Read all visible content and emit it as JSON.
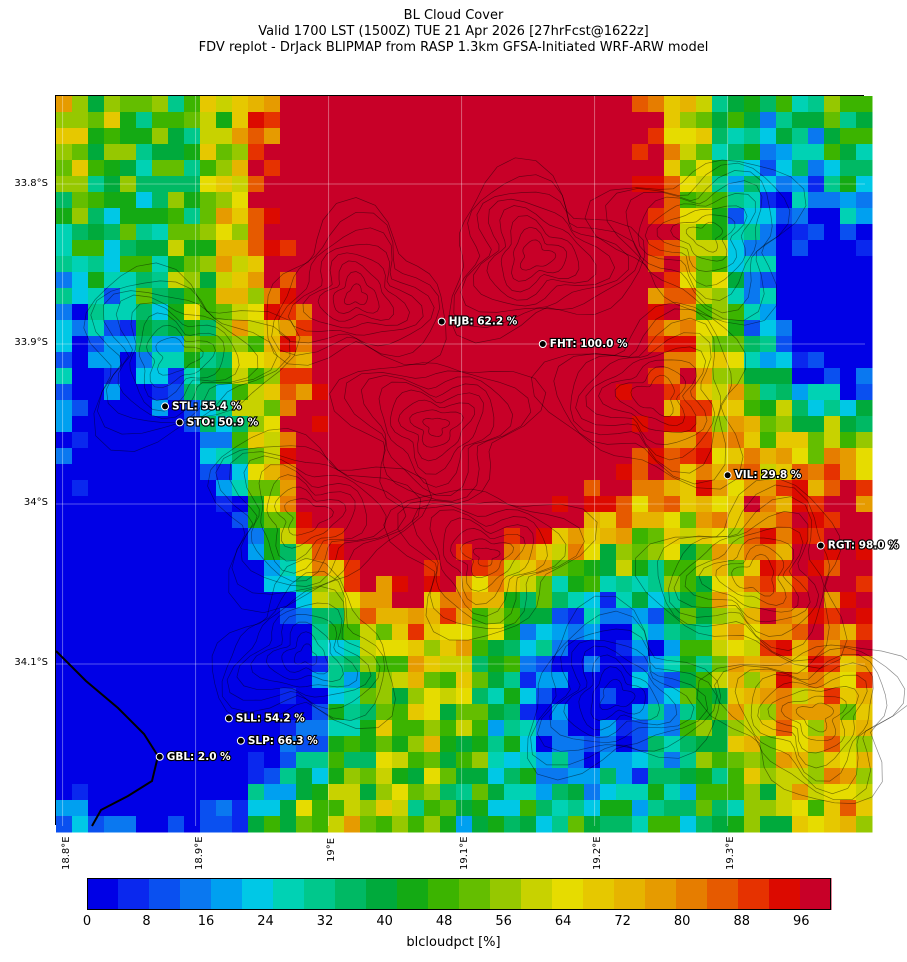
{
  "title_lines": [
    "BL Cloud Cover",
    "Valid 1700 LST (1500Z) TUE 21 Apr 2026 [27hrFcst@1622z]",
    "FDV replot - DrJack BLIPMAP from RASP 1.3km GFSA-Initiated WRF-ARW model"
  ],
  "lat_labels": [
    "33.8°S",
    "33.9°S",
    "34°S",
    "34.1°S"
  ],
  "lon_labels": [
    "18.8°E",
    "18.9°E",
    "19°E",
    "19.1°E",
    "19.2°E",
    "19.3°E"
  ],
  "colorbar": {
    "ticks": [
      "0",
      "8",
      "16",
      "24",
      "32",
      "40",
      "48",
      "56",
      "64",
      "72",
      "80",
      "88",
      "96"
    ],
    "label": "blcloudpct [%]",
    "colors": [
      "#0000e6",
      "#0a28ee",
      "#0a50f0",
      "#0a78f0",
      "#00a0f0",
      "#00c8e6",
      "#00d2b4",
      "#00c88c",
      "#00b964",
      "#00aa3c",
      "#14aa14",
      "#3cb400",
      "#64be00",
      "#96c800",
      "#c8d200",
      "#e6dc00",
      "#e6c800",
      "#e6b400",
      "#e69b00",
      "#e67d00",
      "#e65a00",
      "#e63200",
      "#dc0a00",
      "#c80028"
    ]
  },
  "stations": [
    {
      "id": "HJB",
      "label": "HJB: 62.2 %",
      "value": 62.2,
      "lon": 19.085,
      "lat": 33.886
    },
    {
      "id": "FHT",
      "label": "FHT: 100.0 %",
      "value": 100.0,
      "lon": 19.161,
      "lat": 33.9
    },
    {
      "id": "STL",
      "label": "STL: 55.4 %",
      "value": 55.4,
      "lon": 18.877,
      "lat": 33.939
    },
    {
      "id": "STO",
      "label": "STO: 50.9 %",
      "value": 50.9,
      "lon": 18.888,
      "lat": 33.949
    },
    {
      "id": "VIL",
      "label": "VIL: 29.8 %",
      "value": 29.8,
      "lon": 19.3,
      "lat": 33.982
    },
    {
      "id": "RGT",
      "label": "RGT: 98.0 %",
      "value": 98.0,
      "lon": 19.37,
      "lat": 34.026
    },
    {
      "id": "SLL",
      "label": "SLL: 54.2 %",
      "value": 54.2,
      "lon": 18.925,
      "lat": 34.134
    },
    {
      "id": "SLP",
      "label": "SLP: 66.3 %",
      "value": 66.3,
      "lon": 18.934,
      "lat": 34.148
    },
    {
      "id": "GBL",
      "label": "GBL: 2.0 %",
      "value": 2.0,
      "lon": 18.873,
      "lat": 34.158
    }
  ]
}
